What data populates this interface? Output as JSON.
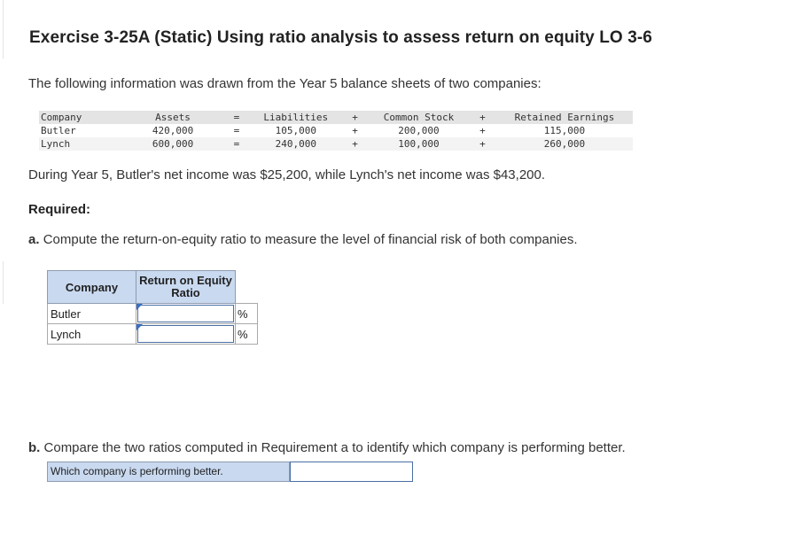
{
  "title": "Exercise 3-25A (Static) Using ratio analysis to assess return on equity LO 3-6",
  "intro": "The following information was drawn from the Year 5 balance sheets of two companies:",
  "balance_sheet": {
    "headers": {
      "company": "Company",
      "assets": "Assets",
      "op1": "=",
      "liabilities": "Liabilities",
      "op2": "+",
      "common_stock": "Common Stock",
      "op3": "+",
      "retained_earnings": "Retained Earnings"
    },
    "rows": [
      {
        "company": "Butler",
        "assets": "420,000",
        "op1": "=",
        "liabilities": "105,000",
        "op2": "+",
        "common_stock": "200,000",
        "op3": "+",
        "retained_earnings": "115,000"
      },
      {
        "company": "Lynch",
        "assets": "600,000",
        "op1": "=",
        "liabilities": "240,000",
        "op2": "+",
        "common_stock": "100,000",
        "op3": "+",
        "retained_earnings": "260,000"
      }
    ]
  },
  "net_income_text": "During Year 5, Butler's net income was $25,200, while Lynch's net income was $43,200.",
  "required_label": "Required:",
  "part_a": {
    "letter": "a.",
    "text": "Compute the return-on-equity ratio to measure the level of financial risk of both companies."
  },
  "roe_table": {
    "header_company": "Company",
    "header_ratio_line1": "Return on Equity",
    "header_ratio_line2": "Ratio",
    "rows": [
      {
        "name": "Butler",
        "value": "",
        "unit": "%"
      },
      {
        "name": "Lynch",
        "value": "",
        "unit": "%"
      }
    ]
  },
  "part_b": {
    "letter": "b.",
    "text": "Compare the two ratios computed in Requirement a to identify which company is performing better."
  },
  "which_label": "Which company is performing better.",
  "which_value": ""
}
